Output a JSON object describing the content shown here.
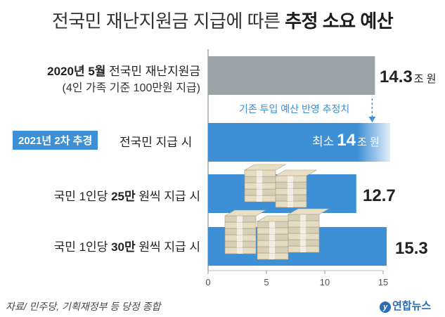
{
  "title": {
    "prefix": "전국민 재난지원금 지급에 따른",
    "emphasis": "추정 소요 예산"
  },
  "rows": [
    {
      "label_bold": "2020년 5월",
      "label_rest": " 전국민 재난지원금",
      "label_sub": "(4인 가족 기준 100만원 지급)",
      "value_text": "14.3",
      "unit": "조 원"
    },
    {
      "badge": "2021년 2차 추경",
      "label_rest": "전국민 지급 시",
      "value_prefix": "최소",
      "value_text": "14",
      "unit": "조 원"
    },
    {
      "label_pre": "국민 1인당 ",
      "label_bold": "25만",
      "label_rest": " 원씩 지급 시",
      "value_text": "12.7"
    },
    {
      "label_pre": "국민 1인당 ",
      "label_bold": "30만",
      "label_rest": " 원씩 지급 시",
      "value_text": "15.3"
    }
  ],
  "annotation": "기존 투입 예산 반영 추정치",
  "source": "자료/ 민주당, 기획재정부 등 당정 종합",
  "logo": "연합뉴스",
  "colors": {
    "gray_bar": "#9aa3a6",
    "blue_bar": "#3d8fd6",
    "badge": "#3d8fd6",
    "annotation": "#3d8fd6"
  },
  "chart_data": {
    "type": "bar",
    "orientation": "horizontal",
    "unit": "조 원",
    "categories": [
      "2020년 5월 전국민 재난지원금 (4인 가족 기준 100만원 지급)",
      "2021년 2차 추경 전국민 지급 시",
      "국민 1인당 25만 원씩 지급 시",
      "국민 1인당 30만 원씩 지급 시"
    ],
    "values": [
      14.3,
      14,
      12.7,
      15.3
    ],
    "bar_colors": [
      "#9aa3a6",
      "#3d8fd6",
      "#3d8fd6",
      "#3d8fd6"
    ],
    "xlim": [
      0,
      15
    ],
    "xticks": [
      0,
      5,
      10,
      15
    ],
    "grid": false
  }
}
